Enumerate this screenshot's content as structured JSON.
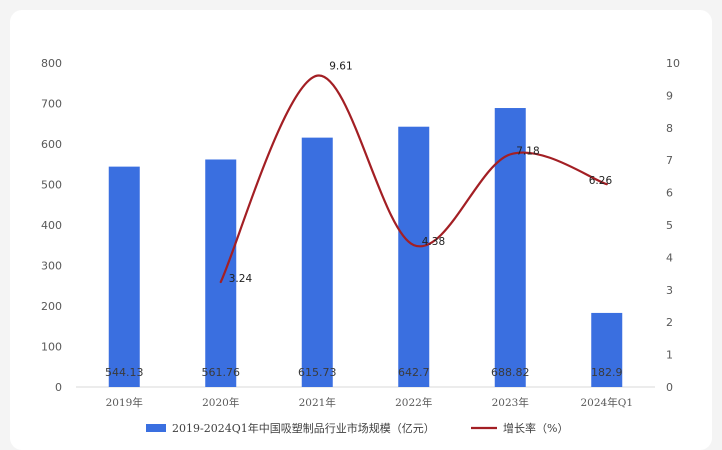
{
  "chart_data": {
    "type": "bar+line",
    "categories": [
      "2019年",
      "2020年",
      "2021年",
      "2022年",
      "2023年",
      "2024年Q1"
    ],
    "series": [
      {
        "name": "2019-2024Q1年中国吸塑制品行业市场规模（亿元）",
        "type": "bar",
        "axis": "left",
        "values": [
          544.13,
          561.76,
          615.73,
          642.7,
          688.82,
          182.9
        ],
        "labels": [
          "544.13",
          "561.76",
          "615.73",
          "642.7",
          "688.82",
          "182.9"
        ],
        "color": "#3a6fe0"
      },
      {
        "name": "增长率（%）",
        "type": "line",
        "axis": "right",
        "values": [
          null,
          3.24,
          9.61,
          4.38,
          7.18,
          6.26
        ],
        "labels": [
          "",
          "3.24",
          "9.61",
          "4.38",
          "7.18",
          "6.26"
        ],
        "color": "#a31f24"
      }
    ],
    "left_axis": {
      "range": [
        0,
        800
      ],
      "ticks": [
        "0",
        "100",
        "200",
        "300",
        "400",
        "500",
        "600",
        "700",
        "800"
      ]
    },
    "right_axis": {
      "range": [
        0,
        10
      ],
      "ticks": [
        "0",
        "1",
        "2",
        "3",
        "4",
        "5",
        "6",
        "7",
        "8",
        "9",
        "10"
      ]
    },
    "grid": false,
    "legend_position": "bottom"
  }
}
